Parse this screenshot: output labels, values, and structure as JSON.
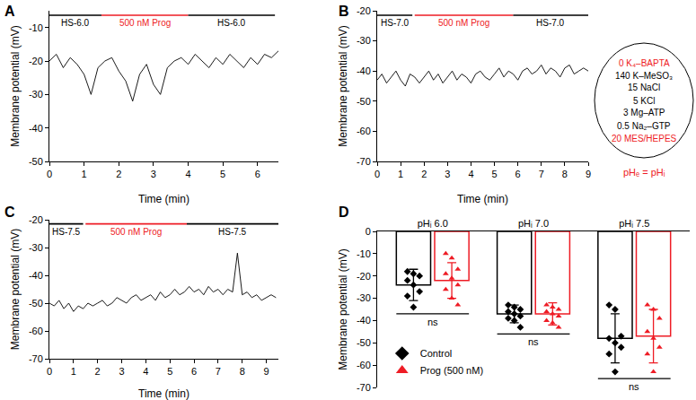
{
  "chart_data": [
    {
      "panel": "A",
      "type": "line",
      "color": "#000000",
      "grid": false,
      "x": [
        0,
        0.2,
        0.4,
        0.6,
        0.8,
        1,
        1.2,
        1.4,
        1.6,
        1.8,
        2,
        2.2,
        2.4,
        2.6,
        2.8,
        3,
        3.2,
        3.4,
        3.6,
        3.8,
        4,
        4.2,
        4.4,
        4.6,
        4.8,
        5,
        5.2,
        5.4,
        5.6,
        5.8,
        6,
        6.2,
        6.4,
        6.6
      ],
      "values": [
        -20,
        -18,
        -22,
        -19,
        -21,
        -24,
        -30,
        -22,
        -20,
        -19,
        -23,
        -26,
        -32,
        -24,
        -21,
        -27,
        -30,
        -22,
        -20,
        -19,
        -21,
        -18,
        -20,
        -22,
        -19,
        -21,
        -18,
        -20,
        -22,
        -19,
        -21,
        -18,
        -19,
        -17
      ],
      "xlim": [
        0,
        6.6
      ],
      "xticks": [
        0,
        1,
        2,
        3,
        4,
        5,
        6
      ],
      "ylim": [
        -50,
        -5
      ],
      "yticks": [
        -50,
        -40,
        -30,
        -20,
        -10
      ],
      "x_label": "Time (min)",
      "y_label": "Membrane potential (mV)",
      "periods": [
        {
          "label": "HS-6.0",
          "start": 0,
          "end": 1.5,
          "color": "#000000"
        },
        {
          "label": "500 nM Prog",
          "start": 1.5,
          "end": 4,
          "color": "#ee1c25"
        },
        {
          "label": "HS-6.0",
          "start": 4,
          "end": 6.5,
          "color": "#000000"
        }
      ]
    },
    {
      "panel": "B",
      "type": "line",
      "color": "#000000",
      "grid": false,
      "x": [
        0,
        0.2,
        0.4,
        0.6,
        0.8,
        1,
        1.2,
        1.4,
        1.6,
        1.8,
        2,
        2.2,
        2.4,
        2.6,
        2.8,
        3,
        3.2,
        3.4,
        3.6,
        3.8,
        4,
        4.2,
        4.4,
        4.6,
        4.8,
        5,
        5.2,
        5.4,
        5.6,
        5.8,
        6,
        6.2,
        6.4,
        6.6,
        6.8,
        7,
        7.2,
        7.4,
        7.6,
        7.8,
        8,
        8.2,
        8.4,
        8.6,
        8.8,
        9
      ],
      "values": [
        -43,
        -41,
        -44,
        -42,
        -40,
        -43,
        -45,
        -41,
        -42,
        -44,
        -42,
        -40,
        -43,
        -41,
        -44,
        -42,
        -40,
        -43,
        -41,
        -42,
        -44,
        -41,
        -40,
        -42,
        -43,
        -41,
        -39,
        -42,
        -40,
        -41,
        -43,
        -40,
        -39,
        -41,
        -40,
        -38,
        -41,
        -39,
        -40,
        -42,
        -39,
        -38,
        -41,
        -40,
        -39,
        -40
      ],
      "xlim": [
        0,
        9
      ],
      "xticks": [
        0,
        1,
        2,
        3,
        4,
        5,
        6,
        7,
        8,
        9
      ],
      "ylim": [
        -70,
        -20
      ],
      "yticks": [
        -70,
        -60,
        -50,
        -40,
        -30,
        -20
      ],
      "x_label": "Time (min)",
      "y_label": "Membrane potential (mV)",
      "periods": [
        {
          "label": "HS-7.0",
          "start": 0,
          "end": 1.5,
          "color": "#000000"
        },
        {
          "label": "500 nM Prog",
          "start": 1.6,
          "end": 5.8,
          "color": "#ee1c25"
        },
        {
          "label": "HS-7.0",
          "start": 5.8,
          "end": 9,
          "color": "#000000"
        }
      ]
    },
    {
      "panel": "C",
      "type": "line",
      "color": "#000000",
      "grid": false,
      "x": [
        0,
        0.2,
        0.4,
        0.6,
        0.8,
        1,
        1.2,
        1.4,
        1.6,
        1.8,
        2,
        2.2,
        2.4,
        2.6,
        2.8,
        3,
        3.2,
        3.4,
        3.6,
        3.8,
        4,
        4.2,
        4.4,
        4.6,
        4.8,
        5,
        5.2,
        5.4,
        5.6,
        5.8,
        6,
        6.2,
        6.4,
        6.6,
        6.8,
        7,
        7.2,
        7.4,
        7.6,
        7.8,
        8,
        8.2,
        8.4,
        8.6,
        8.8,
        9,
        9.2,
        9.4
      ],
      "values": [
        -50,
        -51,
        -49,
        -52,
        -50,
        -53,
        -51,
        -52,
        -50,
        -51,
        -50,
        -49,
        -51,
        -50,
        -48,
        -49,
        -50,
        -48,
        -47,
        -49,
        -48,
        -47,
        -49,
        -46,
        -48,
        -47,
        -45,
        -47,
        -46,
        -44,
        -46,
        -45,
        -47,
        -44,
        -46,
        -45,
        -47,
        -45,
        -46,
        -32,
        -47,
        -46,
        -48,
        -47,
        -49,
        -48,
        -47,
        -48
      ],
      "xlim": [
        0,
        9.5
      ],
      "xticks": [
        0,
        1,
        2,
        3,
        4,
        5,
        6,
        7,
        8,
        9
      ],
      "ylim": [
        -70,
        -20
      ],
      "yticks": [
        -70,
        -60,
        -50,
        -40,
        -30,
        -20
      ],
      "x_label": "Time (min)",
      "y_label": "Membrane potential (mV)",
      "periods": [
        {
          "label": "HS-7.5",
          "start": 0,
          "end": 1.4,
          "color": "#000000"
        },
        {
          "label": "500 nM Prog",
          "start": 1.5,
          "end": 5.7,
          "color": "#ee1c25"
        },
        {
          "label": "HS-7.5",
          "start": 5.7,
          "end": 9.5,
          "color": "#000000"
        }
      ]
    },
    {
      "panel": "D",
      "type": "bar",
      "grid": false,
      "legend": "lower left",
      "categories": [
        "pHᵢ 6.0",
        "pHᵢ 7.0",
        "pHᵢ 7.5"
      ],
      "ylim": [
        -70,
        0
      ],
      "yticks": [
        -70,
        -60,
        -50,
        -40,
        -30,
        -20,
        -10,
        0
      ],
      "y_label": "Membrane potential (mV)",
      "comparisons": [
        "ns",
        "ns",
        "ns"
      ],
      "series": [
        {
          "name": "Control",
          "color": "#000000",
          "marker": "diamond",
          "values": [
            -24,
            -37,
            -48
          ],
          "error": [
            7,
            4,
            11
          ],
          "points": [
            [
              -18,
              -19,
              -20,
              -22,
              -24,
              -27,
              -29,
              -34
            ],
            [
              -33,
              -34,
              -35,
              -36,
              -37,
              -38,
              -39,
              -40,
              -43
            ],
            [
              -33,
              -35,
              -47,
              -48,
              -50,
              -52,
              -55,
              -63
            ]
          ]
        },
        {
          "name": "Prog (500 nM)",
          "color": "#ee1c25",
          "marker": "triangle-up",
          "values": [
            -22,
            -37,
            -47
          ],
          "error": [
            8,
            5,
            12
          ],
          "points": [
            [
              -10,
              -12,
              -17,
              -19,
              -21,
              -24,
              -26,
              -30,
              -33
            ],
            [
              -33,
              -34,
              -35,
              -36,
              -37,
              -38,
              -40,
              -41,
              -43
            ],
            [
              -33,
              -35,
              -39,
              -45,
              -48,
              -52,
              -55,
              -63
            ]
          ]
        }
      ]
    }
  ],
  "solution": {
    "lines": [
      {
        "text": "0 K₄–BAPTA",
        "color": "#ee1c25"
      },
      {
        "text": "140 K–MeSO₃",
        "color": "#000000"
      },
      {
        "text": "15 NaCl",
        "color": "#000000"
      },
      {
        "text": "5 KCl",
        "color": "#000000"
      },
      {
        "text": "3 Mg–ATP",
        "color": "#000000"
      },
      {
        "text": "0.5 Na₂–GTP",
        "color": "#000000"
      },
      {
        "text": "20 MES/HEPES",
        "color": "#ee1c25"
      }
    ],
    "note": {
      "text": "pHₑ = pHᵢ",
      "color": "#ee1c25"
    }
  }
}
